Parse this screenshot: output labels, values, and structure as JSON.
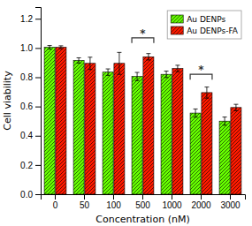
{
  "chart_data": {
    "type": "bar",
    "categories": [
      "0",
      "50",
      "100",
      "500",
      "1000",
      "2000",
      "3000"
    ],
    "series": [
      {
        "name": "Au DENPs",
        "color": "#66ff00",
        "values": [
          1.005,
          0.915,
          0.835,
          0.805,
          0.82,
          0.555,
          0.5
        ],
        "errors": [
          0.012,
          0.018,
          0.022,
          0.028,
          0.022,
          0.028,
          0.028
        ]
      },
      {
        "name": "Au DENPs-FA",
        "color": "#ff1a00",
        "values": [
          1.005,
          0.895,
          0.895,
          0.94,
          0.86,
          0.695,
          0.593
        ],
        "errors": [
          0.01,
          0.042,
          0.075,
          0.022,
          0.022,
          0.038,
          0.022
        ]
      }
    ],
    "xlabel": "Concentration (nM)",
    "ylabel": "Cell viability",
    "ylim": [
      0.0,
      1.28
    ],
    "yticks": [
      {
        "value": 0.0,
        "label": "0.0"
      },
      {
        "value": 0.2,
        "label": "0.2"
      },
      {
        "value": 0.4,
        "label": "0.4"
      },
      {
        "value": 0.6,
        "label": "0.6"
      },
      {
        "value": 0.8,
        "label": "0.8"
      },
      {
        "value": 1.0,
        "label": "1.0"
      },
      {
        "value": 1.2,
        "label": "1.2"
      }
    ],
    "annotations": [
      {
        "text": "*",
        "x": "500",
        "y": 1.07
      },
      {
        "text": "*",
        "x": "2000",
        "y": 0.82
      }
    ],
    "legend": "upper right",
    "grid": false
  }
}
